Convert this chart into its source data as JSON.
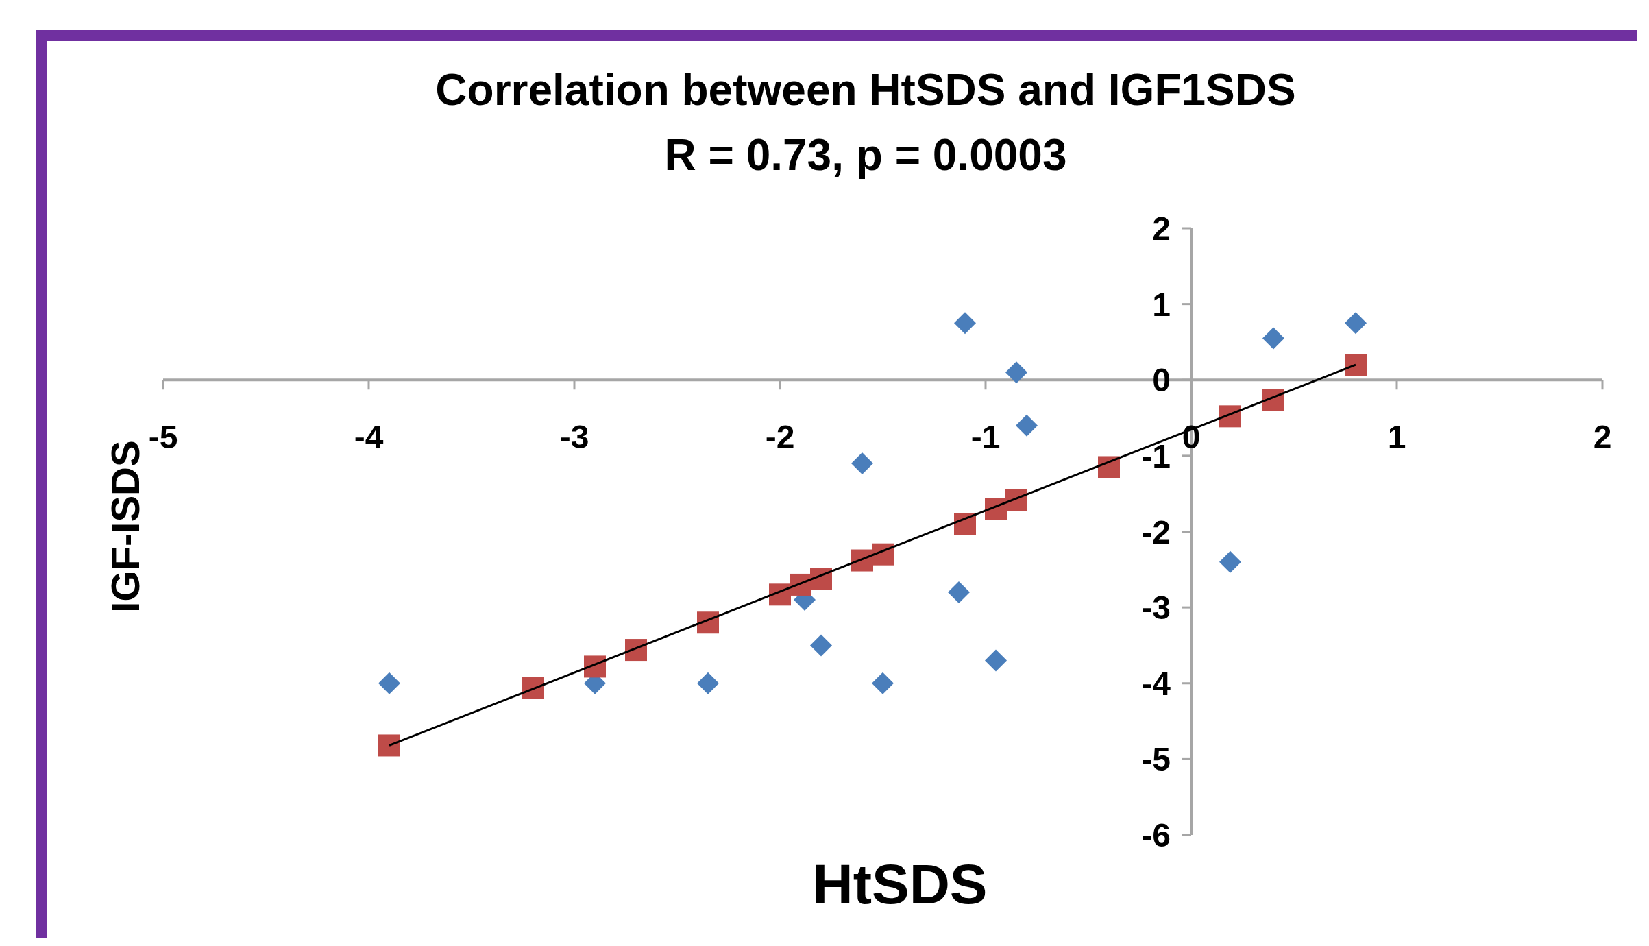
{
  "chart_data": {
    "type": "scatter",
    "title": "Correlation between HtSDS and IGF1SDS",
    "subtitle": "R = 0.73, p = 0.0003",
    "xlabel": "HtSDS",
    "ylabel": "IGF-ISDS",
    "xlim": [
      -5,
      2
    ],
    "ylim": [
      -6,
      2
    ],
    "xticks": [
      -5,
      -4,
      -3,
      -2,
      -1,
      0,
      1,
      2
    ],
    "yticks": [
      -6,
      -5,
      -4,
      -3,
      -2,
      -1,
      0,
      1,
      2
    ],
    "grid": false,
    "series": [
      {
        "marker": "diamond",
        "color": "#4a7ebb",
        "x": [
          -3.9,
          -2.9,
          -2.35,
          -1.88,
          -1.8,
          -1.6,
          -1.5,
          -1.13,
          -1.1,
          -0.95,
          -0.85,
          -0.8,
          0.19,
          0.4,
          0.8
        ],
        "values": [
          -4,
          -4,
          -4,
          -2.9,
          -3.5,
          -1.1,
          -4,
          -2.8,
          0.75,
          -3.7,
          0.1,
          -0.6,
          -2.4,
          0.55,
          0.75
        ]
      },
      {
        "marker": "square",
        "color": "#be4b48",
        "x": [
          -3.9,
          -3.2,
          -2.9,
          -2.7,
          -2.35,
          -2.0,
          -1.9,
          -1.8,
          -1.6,
          -1.5,
          -1.1,
          -0.95,
          -0.85,
          -0.4,
          0.19,
          0.4,
          0.8
        ],
        "values": [
          -4.82,
          -4.06,
          -3.78,
          -3.56,
          -3.2,
          -2.83,
          -2.7,
          -2.62,
          -2.38,
          -2.3,
          -1.9,
          -1.7,
          -1.58,
          -1.15,
          -0.48,
          -0.26,
          0.2
        ]
      },
      {
        "type": "line",
        "line_style": "solid",
        "color": "#000000",
        "x": [
          -3.9,
          0.8
        ],
        "values": [
          -4.82,
          0.2
        ]
      }
    ]
  }
}
